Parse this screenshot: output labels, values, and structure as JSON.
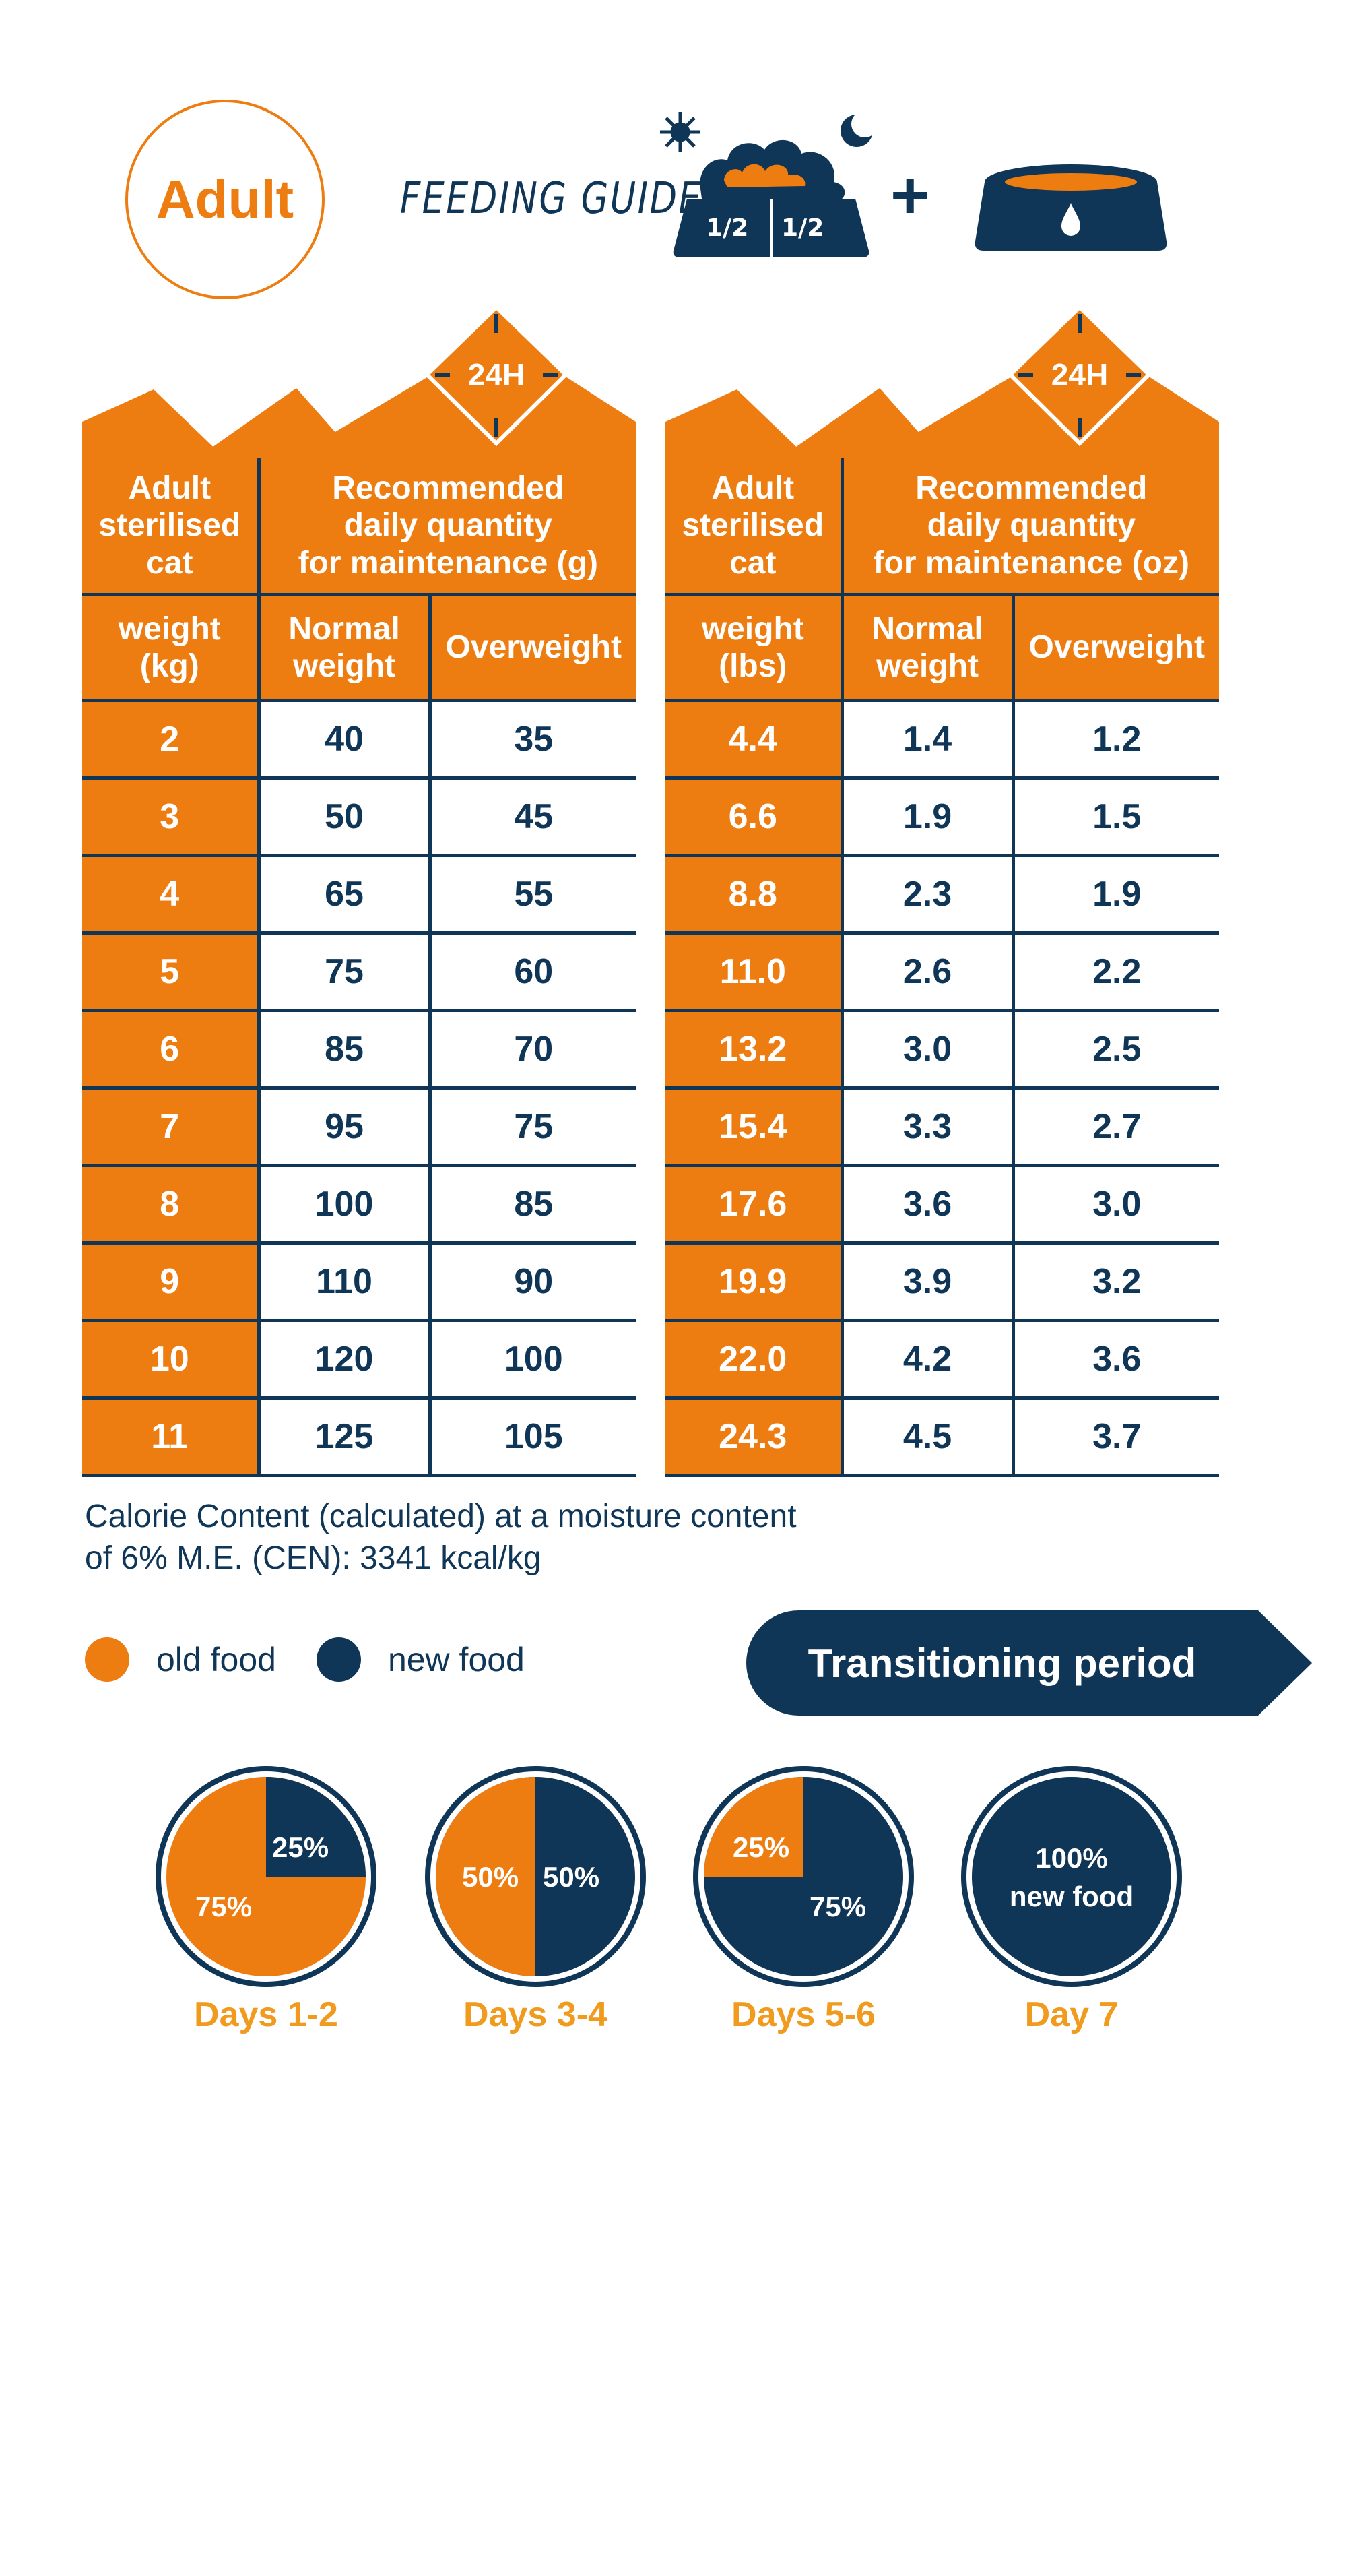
{
  "header": {
    "badge": "Adult",
    "title": "FEEDING GUIDE",
    "bowl_left_half": "1/2",
    "bowl_right_half": "1/2",
    "plus": "+"
  },
  "metric_table": {
    "badge": "24H",
    "head_weight": [
      "Adult",
      "sterilised",
      "cat"
    ],
    "head_qty": [
      "Recommended",
      "daily quantity",
      "for maintenance (g)"
    ],
    "sub_weight": [
      "weight",
      "(kg)"
    ],
    "sub_normal": [
      "Normal",
      "weight"
    ],
    "sub_over": "Overweight",
    "rows": [
      [
        "2",
        "40",
        "35"
      ],
      [
        "3",
        "50",
        "45"
      ],
      [
        "4",
        "65",
        "55"
      ],
      [
        "5",
        "75",
        "60"
      ],
      [
        "6",
        "85",
        "70"
      ],
      [
        "7",
        "95",
        "75"
      ],
      [
        "8",
        "100",
        "85"
      ],
      [
        "9",
        "110",
        "90"
      ],
      [
        "10",
        "120",
        "100"
      ],
      [
        "11",
        "125",
        "105"
      ]
    ]
  },
  "imperial_table": {
    "badge": "24H",
    "head_weight": [
      "Adult",
      "sterilised",
      "cat"
    ],
    "head_qty": [
      "Recommended",
      "daily quantity",
      "for maintenance (oz)"
    ],
    "sub_weight": [
      "weight",
      "(lbs)"
    ],
    "sub_normal": [
      "Normal",
      "weight"
    ],
    "sub_over": "Overweight",
    "rows": [
      [
        "4.4",
        "1.4",
        "1.2"
      ],
      [
        "6.6",
        "1.9",
        "1.5"
      ],
      [
        "8.8",
        "2.3",
        "1.9"
      ],
      [
        "11.0",
        "2.6",
        "2.2"
      ],
      [
        "13.2",
        "3.0",
        "2.5"
      ],
      [
        "15.4",
        "3.3",
        "2.7"
      ],
      [
        "17.6",
        "3.6",
        "3.0"
      ],
      [
        "19.9",
        "3.9",
        "3.2"
      ],
      [
        "22.0",
        "4.2",
        "3.6"
      ],
      [
        "24.3",
        "4.5",
        "3.7"
      ]
    ]
  },
  "calorie_note": [
    "Calorie Content (calculated) at a moisture content",
    "of 6% M.E. (CEN): 3341 kcal/kg"
  ],
  "legend": {
    "old": "old food",
    "new": "new food",
    "old_color": "#EE7D11",
    "new_color": "#0F3557"
  },
  "transition_label": "Transitioning period",
  "transition": [
    {
      "label": "Days 1-2",
      "old_pct": 75,
      "new_pct": 25,
      "old_text": "75%",
      "new_text": "25%"
    },
    {
      "label": "Days 3-4",
      "old_pct": 50,
      "new_pct": 50,
      "old_text": "50%",
      "new_text": "50%"
    },
    {
      "label": "Days 5-6",
      "old_pct": 25,
      "new_pct": 75,
      "old_text": "25%",
      "new_text": "75%"
    },
    {
      "label": "Day 7",
      "old_pct": 0,
      "new_pct": 100,
      "new_text_lines": [
        "100%",
        "new food"
      ]
    }
  ]
}
